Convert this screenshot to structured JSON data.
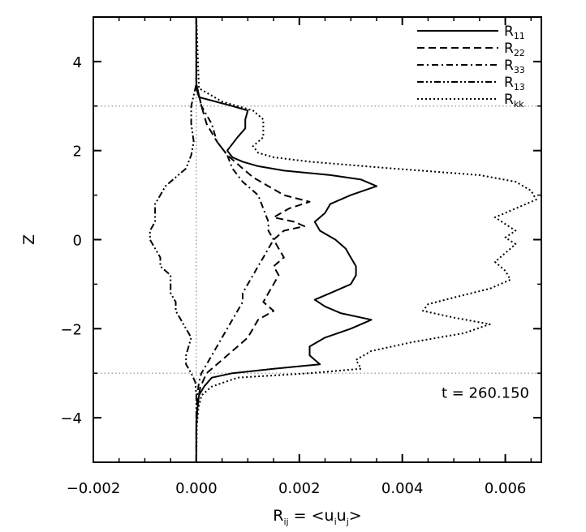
{
  "chart_data": {
    "type": "line",
    "orientation": "profile (x = value, y = z)",
    "title": "",
    "xlabel": {
      "main": "R",
      "sub": "ij",
      "rest": " = <u",
      "sub2": "i",
      "mid": "u",
      "sub3": "j",
      "end": ">"
    },
    "ylabel": "Z",
    "xlim": [
      -0.002,
      0.0067
    ],
    "ylim": [
      -5,
      5
    ],
    "x_ticks": [
      -0.002,
      0.0,
      0.002,
      0.004,
      0.006
    ],
    "x_tick_labels": [
      "−0.002",
      "0.000",
      "0.002",
      "0.004",
      "0.006"
    ],
    "y_ticks": [
      -4,
      -2,
      0,
      2,
      4
    ],
    "y_tick_labels": [
      "−4",
      "−2",
      "0",
      "2",
      "4"
    ],
    "reference_lines": {
      "z": [
        3,
        -3
      ],
      "x": [
        0.0
      ]
    },
    "legend_position": "top-right",
    "annotation": "t = 260.150",
    "series": [
      {
        "name": "R",
        "name_sub": "11",
        "dash": "solid",
        "z": [
          5,
          3.4,
          3.2,
          3.0,
          2.9,
          2.7,
          2.5,
          2.3,
          2.0,
          1.85,
          1.75,
          1.65,
          1.55,
          1.45,
          1.35,
          1.2,
          1.0,
          0.8,
          0.6,
          0.4,
          0.2,
          0.0,
          -0.2,
          -0.4,
          -0.6,
          -0.8,
          -1.0,
          -1.2,
          -1.35,
          -1.5,
          -1.65,
          -1.8,
          -2.0,
          -2.2,
          -2.4,
          -2.6,
          -2.8,
          -2.9,
          -3.0,
          -3.1,
          -3.3,
          -3.5,
          -3.8,
          -4.2,
          -5.0
        ],
        "x": [
          0.0,
          0.0,
          5e-05,
          0.0007,
          0.001,
          0.00095,
          0.00095,
          0.0008,
          0.0006,
          0.0007,
          0.0009,
          0.0012,
          0.0017,
          0.0026,
          0.0032,
          0.0035,
          0.003,
          0.0026,
          0.0025,
          0.0023,
          0.0024,
          0.0027,
          0.0029,
          0.003,
          0.0031,
          0.0031,
          0.003,
          0.0026,
          0.0023,
          0.0025,
          0.0028,
          0.0034,
          0.003,
          0.0025,
          0.0022,
          0.0022,
          0.0024,
          0.0015,
          0.0007,
          0.0003,
          0.00015,
          5e-05,
          2e-05,
          0.0,
          0.0
        ]
      },
      {
        "name": "R",
        "name_sub": "22",
        "dash": "dashed",
        "z": [
          5,
          3.5,
          3.0,
          2.6,
          2.2,
          1.9,
          1.6,
          1.4,
          1.2,
          1.0,
          0.85,
          0.7,
          0.5,
          0.4,
          0.3,
          0.2,
          0.0,
          -0.2,
          -0.4,
          -0.6,
          -0.8,
          -1.0,
          -1.2,
          -1.4,
          -1.6,
          -1.8,
          -2.0,
          -2.2,
          -2.4,
          -2.6,
          -2.8,
          -3.0,
          -3.3,
          -3.6,
          -4.0,
          -5.0
        ],
        "x": [
          0.0,
          0.0,
          0.0001,
          0.0002,
          0.0004,
          0.0006,
          0.0009,
          0.0011,
          0.0014,
          0.0017,
          0.0022,
          0.0018,
          0.0015,
          0.0019,
          0.0021,
          0.0017,
          0.0015,
          0.0016,
          0.0017,
          0.0015,
          0.0016,
          0.0015,
          0.0014,
          0.0013,
          0.0015,
          0.0012,
          0.0011,
          0.001,
          0.0008,
          0.0006,
          0.0004,
          0.0002,
          8e-05,
          3e-05,
          0.0,
          0.0
        ]
      },
      {
        "name": "R",
        "name_sub": "33",
        "dash": "dash-dot",
        "z": [
          5,
          3.5,
          3.0,
          2.6,
          2.2,
          1.9,
          1.6,
          1.3,
          1.0,
          0.7,
          0.4,
          0.2,
          0.0,
          -0.2,
          -0.4,
          -0.6,
          -0.8,
          -1.0,
          -1.2,
          -1.4,
          -1.6,
          -1.8,
          -2.0,
          -2.2,
          -2.4,
          -2.6,
          -2.8,
          -3.0,
          -3.2,
          -3.5,
          -4.0,
          -5.0
        ],
        "x": [
          0.0,
          0.0,
          0.0001,
          0.0003,
          0.0004,
          0.0006,
          0.0007,
          0.0009,
          0.0012,
          0.0013,
          0.0014,
          0.0014,
          0.0015,
          0.0014,
          0.0013,
          0.0012,
          0.0011,
          0.001,
          0.0009,
          0.0009,
          0.0008,
          0.0007,
          0.0006,
          0.0005,
          0.0004,
          0.0003,
          0.0002,
          0.0001,
          5e-05,
          2e-05,
          0.0,
          0.0
        ]
      },
      {
        "name": "R",
        "name_sub": "13",
        "dash": "dash-dot-dot",
        "z": [
          5,
          3.5,
          3.0,
          2.6,
          2.2,
          1.9,
          1.6,
          1.4,
          1.2,
          1.0,
          0.8,
          0.6,
          0.4,
          0.2,
          0.0,
          -0.2,
          -0.4,
          -0.6,
          -0.8,
          -1.0,
          -1.2,
          -1.4,
          -1.6,
          -1.8,
          -2.0,
          -2.2,
          -2.4,
          -2.6,
          -2.8,
          -3.0,
          -3.2,
          -3.5,
          -4.0,
          -5.0
        ],
        "x": [
          0.0,
          0.0,
          -0.0001,
          -0.0001,
          -5e-05,
          -0.0001,
          -0.0002,
          -0.0004,
          -0.0006,
          -0.0007,
          -0.0008,
          -0.0008,
          -0.0008,
          -0.0009,
          -0.0009,
          -0.0008,
          -0.0007,
          -0.0007,
          -0.0005,
          -0.0005,
          -0.0005,
          -0.0004,
          -0.0004,
          -0.0003,
          -0.0002,
          -0.0001,
          -0.00015,
          -0.0002,
          -0.0002,
          -0.0001,
          -2e-05,
          0.0,
          0.0,
          0.0
        ]
      },
      {
        "name": "R",
        "name_sub": "kk",
        "dash": "dotted",
        "z": [
          5,
          3.4,
          3.1,
          3.0,
          2.9,
          2.7,
          2.5,
          2.3,
          2.1,
          1.95,
          1.85,
          1.75,
          1.6,
          1.45,
          1.3,
          1.1,
          0.9,
          0.7,
          0.5,
          0.35,
          0.2,
          0.05,
          -0.1,
          -0.3,
          -0.5,
          -0.7,
          -0.9,
          -1.1,
          -1.3,
          -1.45,
          -1.6,
          -1.75,
          -1.9,
          -2.1,
          -2.3,
          -2.5,
          -2.7,
          -2.9,
          -3.0,
          -3.1,
          -3.3,
          -3.5,
          -3.8,
          -4.2,
          -5.0
        ],
        "x": [
          0.0,
          5e-05,
          0.0005,
          0.0008,
          0.0011,
          0.0013,
          0.0013,
          0.0013,
          0.0011,
          0.0012,
          0.0015,
          0.0022,
          0.0038,
          0.0055,
          0.0062,
          0.0065,
          0.0066,
          0.0062,
          0.0058,
          0.006,
          0.0062,
          0.006,
          0.0062,
          0.006,
          0.0058,
          0.006,
          0.0061,
          0.0057,
          0.005,
          0.0045,
          0.0044,
          0.005,
          0.0057,
          0.0052,
          0.0042,
          0.0034,
          0.0031,
          0.0032,
          0.0022,
          0.0008,
          0.0003,
          0.0001,
          4e-05,
          1e-05,
          0.0
        ]
      }
    ]
  }
}
